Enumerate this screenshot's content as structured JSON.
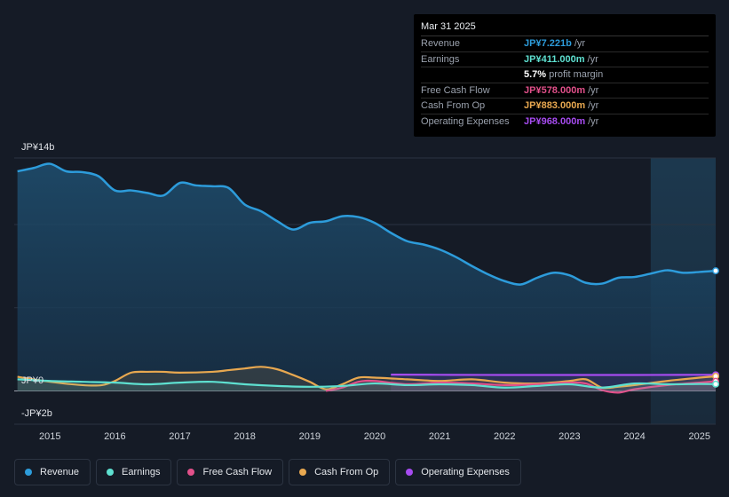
{
  "tooltip": {
    "date": "Mar 31 2025",
    "rows": [
      {
        "label": "Revenue",
        "value": "JP¥7.221b",
        "unit": "/yr",
        "color": "#2d9cdb"
      },
      {
        "label": "Earnings",
        "value": "JP¥411.000m",
        "unit": "/yr",
        "color": "#5ee0d0"
      },
      {
        "label": "",
        "value": "5.7%",
        "unit": "profit margin",
        "color": "#ffffff"
      },
      {
        "label": "Free Cash Flow",
        "value": "JP¥578.000m",
        "unit": "/yr",
        "color": "#e2508a"
      },
      {
        "label": "Cash From Op",
        "value": "JP¥883.000m",
        "unit": "/yr",
        "color": "#e8a850"
      },
      {
        "label": "Operating Expenses",
        "value": "JP¥968.000m",
        "unit": "/yr",
        "color": "#a64bf0"
      }
    ]
  },
  "legend": [
    {
      "label": "Revenue",
      "color": "#2d9cdb"
    },
    {
      "label": "Earnings",
      "color": "#5ee0d0"
    },
    {
      "label": "Free Cash Flow",
      "color": "#e2508a"
    },
    {
      "label": "Cash From Op",
      "color": "#e8a850"
    },
    {
      "label": "Operating Expenses",
      "color": "#a64bf0"
    }
  ],
  "chart_data": {
    "type": "area",
    "title": "",
    "ylabel": "JP¥",
    "y_tick_labels": [
      "JP¥14b",
      "JP¥0",
      "-JP¥2b"
    ],
    "ylim": [
      -2,
      14
    ],
    "xlim": [
      2014.45,
      2025.25
    ],
    "x_tick_labels": [
      "2015",
      "2016",
      "2017",
      "2018",
      "2019",
      "2020",
      "2021",
      "2022",
      "2023",
      "2024",
      "2025"
    ],
    "highlight_from": 2024.25,
    "series": [
      {
        "name": "Revenue",
        "color": "#2d9cdb",
        "fill": true,
        "x": [
          2014.5,
          2014.75,
          2015.0,
          2015.25,
          2015.5,
          2015.75,
          2016.0,
          2016.25,
          2016.5,
          2016.75,
          2017.0,
          2017.25,
          2017.5,
          2017.75,
          2018.0,
          2018.25,
          2018.5,
          2018.75,
          2019.0,
          2019.25,
          2019.5,
          2019.75,
          2020.0,
          2020.25,
          2020.5,
          2020.75,
          2021.0,
          2021.25,
          2021.5,
          2021.75,
          2022.0,
          2022.25,
          2022.5,
          2022.75,
          2023.0,
          2023.25,
          2023.5,
          2023.75,
          2024.0,
          2024.25,
          2024.5,
          2024.75,
          2025.0,
          2025.25
        ],
        "values": [
          13.2,
          13.4,
          13.65,
          13.2,
          13.15,
          12.9,
          12.05,
          12.05,
          11.9,
          11.75,
          12.5,
          12.35,
          12.3,
          12.2,
          11.2,
          10.8,
          10.2,
          9.7,
          10.1,
          10.2,
          10.5,
          10.45,
          10.1,
          9.5,
          9.0,
          8.8,
          8.5,
          8.05,
          7.5,
          7.0,
          6.6,
          6.4,
          6.8,
          7.1,
          6.95,
          6.5,
          6.45,
          6.8,
          6.85,
          7.05,
          7.25,
          7.1,
          7.15,
          7.22
        ]
      },
      {
        "name": "Earnings",
        "color": "#5ee0d0",
        "fill": false,
        "x": [
          2014.5,
          2015.0,
          2015.5,
          2016.0,
          2016.5,
          2017.0,
          2017.5,
          2018.0,
          2018.5,
          2019.0,
          2019.5,
          2020.0,
          2020.5,
          2021.0,
          2021.5,
          2022.0,
          2022.5,
          2023.0,
          2023.5,
          2024.0,
          2024.5,
          2025.0,
          2025.25
        ],
        "values": [
          0.7,
          0.6,
          0.55,
          0.5,
          0.4,
          0.5,
          0.55,
          0.4,
          0.3,
          0.25,
          0.3,
          0.45,
          0.35,
          0.4,
          0.35,
          0.2,
          0.3,
          0.4,
          0.2,
          0.45,
          0.4,
          0.42,
          0.41
        ]
      },
      {
        "name": "Free Cash Flow",
        "color": "#e2508a",
        "fill": false,
        "x": [
          2019.25,
          2019.5,
          2019.75,
          2020.0,
          2020.5,
          2021.0,
          2021.5,
          2022.0,
          2022.5,
          2023.0,
          2023.25,
          2023.5,
          2023.75,
          2024.0,
          2024.5,
          2025.0,
          2025.25
        ],
        "values": [
          0.0,
          0.2,
          0.55,
          0.6,
          0.4,
          0.5,
          0.45,
          0.35,
          0.4,
          0.5,
          0.45,
          0.05,
          -0.1,
          0.1,
          0.35,
          0.5,
          0.58
        ]
      },
      {
        "name": "Cash From Op",
        "color": "#e8a850",
        "fill": false,
        "x": [
          2014.5,
          2015.0,
          2015.5,
          2015.8,
          2016.0,
          2016.25,
          2016.5,
          2016.75,
          2017.0,
          2017.5,
          2017.75,
          2018.0,
          2018.25,
          2018.5,
          2018.75,
          2019.0,
          2019.25,
          2019.5,
          2019.75,
          2020.0,
          2020.5,
          2021.0,
          2021.5,
          2022.0,
          2022.5,
          2023.0,
          2023.25,
          2023.5,
          2023.75,
          2024.0,
          2024.5,
          2025.0,
          2025.25
        ],
        "values": [
          0.85,
          0.55,
          0.35,
          0.35,
          0.6,
          1.1,
          1.15,
          1.15,
          1.1,
          1.15,
          1.25,
          1.35,
          1.45,
          1.3,
          0.95,
          0.55,
          0.1,
          0.4,
          0.8,
          0.8,
          0.7,
          0.6,
          0.7,
          0.5,
          0.45,
          0.6,
          0.7,
          0.2,
          0.25,
          0.35,
          0.6,
          0.8,
          0.88
        ]
      },
      {
        "name": "Operating Expenses",
        "color": "#a64bf0",
        "fill": false,
        "x": [
          2020.25,
          2021.0,
          2022.0,
          2023.0,
          2024.0,
          2025.0,
          2025.25
        ],
        "values": [
          0.98,
          0.97,
          0.96,
          0.96,
          0.96,
          0.97,
          0.97
        ]
      }
    ]
  }
}
